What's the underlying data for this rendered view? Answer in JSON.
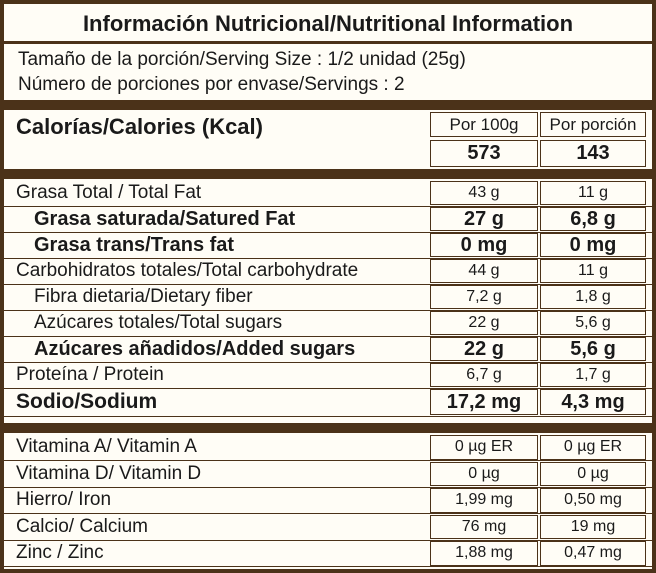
{
  "title": "Información Nutricional/Nutritional Information",
  "serving_size": "Tamaño de la porción/Serving Size : 1/2 unidad (25g)",
  "servings": "Número de porciones por envase/Servings : 2",
  "calories": {
    "label": "Calorías/Calories (Kcal)",
    "col1_header": "Por 100g",
    "col2_header": "Por porción",
    "col1_value": "573",
    "col2_value": "143"
  },
  "nutrients": [
    {
      "label": "Grasa Total / Total Fat",
      "per100": "43 g",
      "perserv": "11 g"
    },
    {
      "label": "Grasa saturada/Satured Fat",
      "per100": "27 g",
      "perserv": "6,8 g"
    },
    {
      "label": "Grasa trans/Trans fat",
      "per100": "0 mg",
      "perserv": "0 mg"
    },
    {
      "label": "Carbohidratos totales/Total carbohydrate",
      "per100": "44 g",
      "perserv": "11 g"
    },
    {
      "label": "Fibra dietaria/Dietary fiber",
      "per100": "7,2 g",
      "perserv": "1,8 g"
    },
    {
      "label": "Azúcares totales/Total sugars",
      "per100": "22 g",
      "perserv": "5,6 g"
    },
    {
      "label": "Azúcares añadidos/Added sugars",
      "per100": "22 g",
      "perserv": "5,6 g"
    },
    {
      "label": "Proteína / Protein",
      "per100": "6,7 g",
      "perserv": "1,7 g"
    },
    {
      "label": "Sodio/Sodium",
      "per100": "17,2 mg",
      "perserv": "4,3 mg"
    }
  ],
  "vitamins": [
    {
      "label": "Vitamina A/ Vitamin A",
      "per100": "0 µg ER",
      "perserv": "0 µg ER"
    },
    {
      "label": "Vitamina D/ Vitamin D",
      "per100": "0 µg",
      "perserv": "0 µg"
    },
    {
      "label": "Hierro/ Iron",
      "per100": "1,99 mg",
      "perserv": "0,50 mg"
    },
    {
      "label": "Calcio/ Calcium",
      "per100": "76 mg",
      "perserv": "19 mg"
    },
    {
      "label": "Zinc / Zinc",
      "per100": "1,88 mg",
      "perserv": "0,47 mg"
    }
  ],
  "colors": {
    "border": "#4b3219",
    "background": "#fffdf6"
  }
}
